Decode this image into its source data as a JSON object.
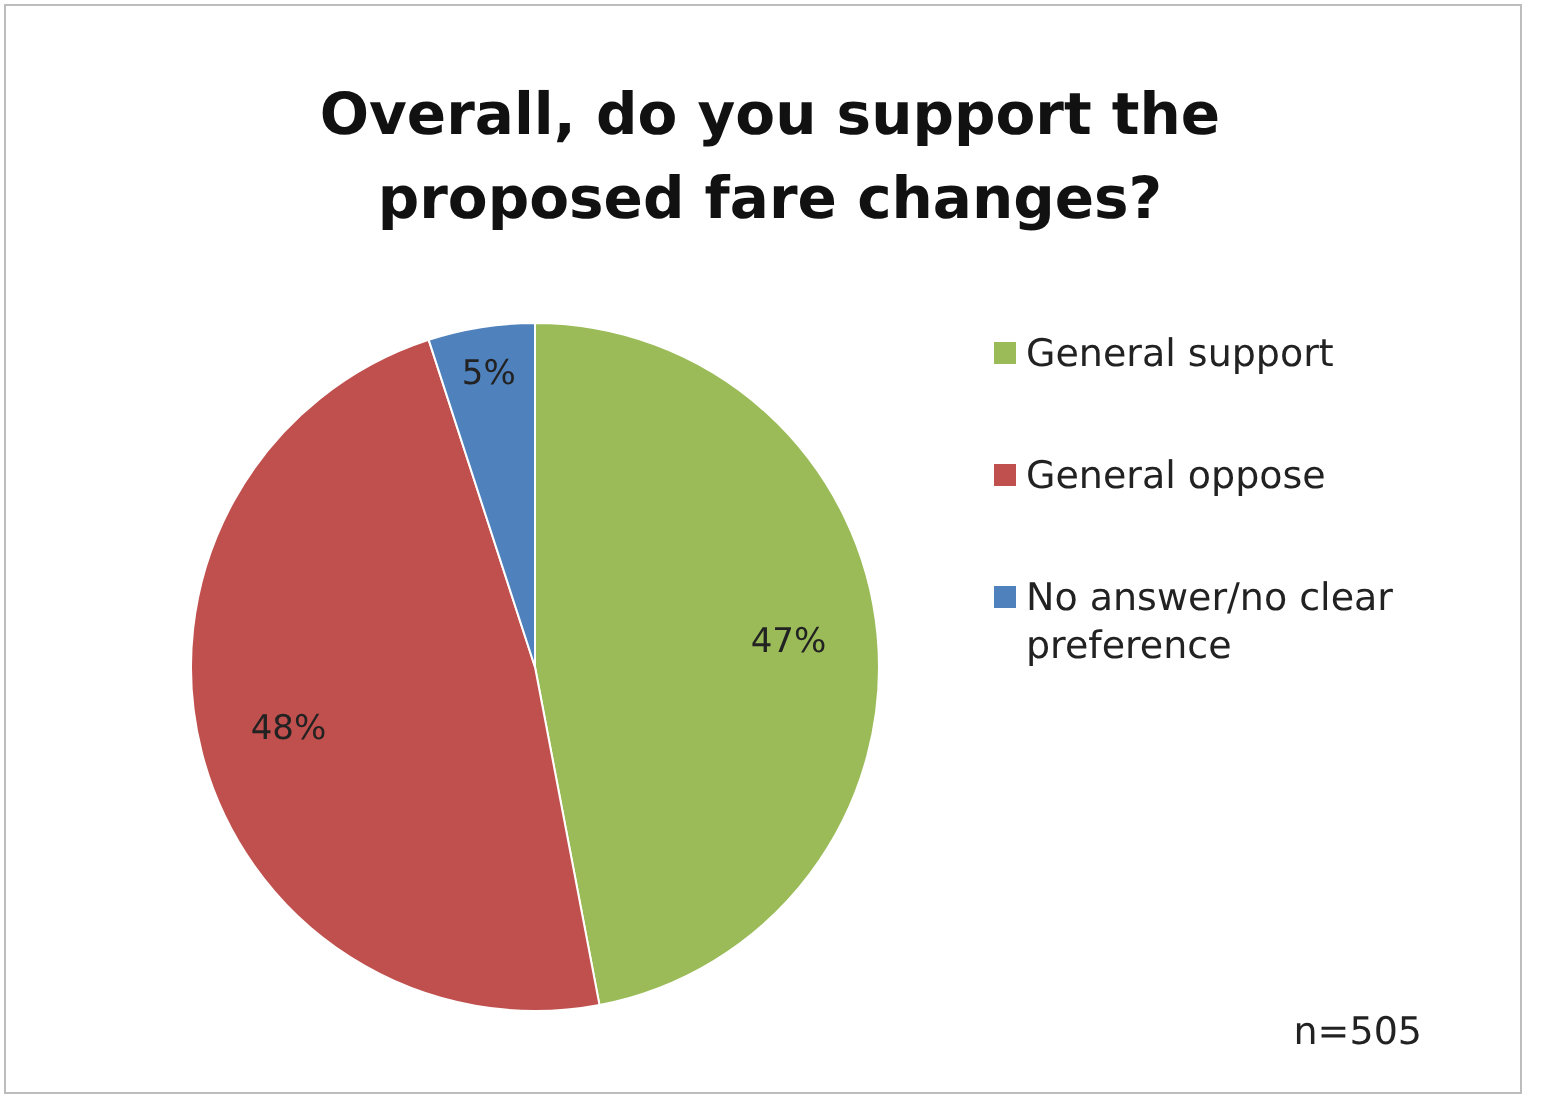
{
  "chart_data": {
    "type": "pie",
    "title": "Overall, do you support the proposed fare changes?",
    "categories": [
      "General support",
      "General oppose",
      "No answer/no clear preference"
    ],
    "values": [
      47,
      48,
      5
    ],
    "colors": [
      "#9bbb59",
      "#c0504d",
      "#4f81bd"
    ],
    "value_labels": [
      "47%",
      "48%",
      "5%"
    ],
    "legend": "right",
    "annotations": [
      "n=505"
    ]
  }
}
